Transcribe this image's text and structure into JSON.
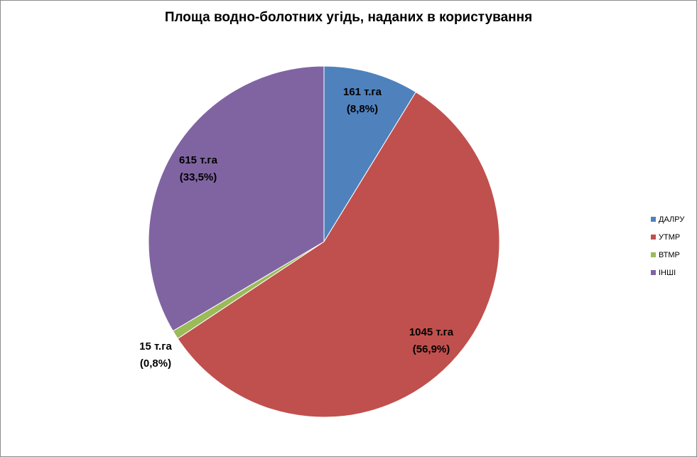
{
  "chart_data": {
    "type": "pie",
    "title": "Площа водно-болотних угідь, наданих в користування",
    "slices": [
      {
        "name": "ДАЛРУ",
        "value": 161,
        "label_value": "161 т.га",
        "label_pct": "(8,8%)",
        "color": "#4F81BD"
      },
      {
        "name": "УТМР",
        "value": 1045,
        "label_value": "1045 т.га",
        "label_pct": "(56,9%)",
        "color": "#C0504D"
      },
      {
        "name": "ВТМР",
        "value": 15,
        "label_value": "15 т.га",
        "label_pct": "(0,8%)",
        "color": "#9BBB59"
      },
      {
        "name": "ІНШІ",
        "value": 615,
        "label_value": "615 т.га",
        "label_pct": "(33,5%)",
        "color": "#8064A2"
      }
    ],
    "legend_position": "right"
  }
}
